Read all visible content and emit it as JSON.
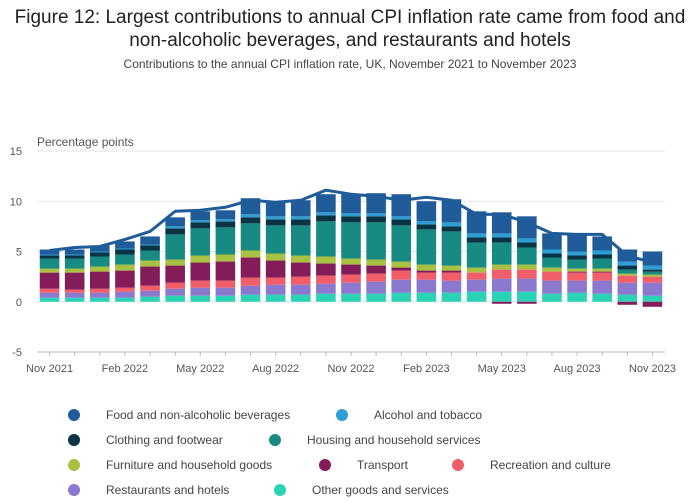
{
  "title": "Figure 12: Largest contributions to annual CPI inflation rate came from food and non-alcoholic beverages, and restaurants and hotels",
  "subtitle": "Contributions to the annual CPI inflation rate, UK, November 2021 to November 2023",
  "chart_data": {
    "type": "bar",
    "stacked": true,
    "ylabel": "Percentage points",
    "ylim": [
      -5,
      15
    ],
    "yticks": [
      -5,
      0,
      5,
      10,
      15
    ],
    "grid": true,
    "legend_position": "bottom",
    "categories": [
      "Nov 2021",
      "Dec 2021",
      "Jan 2022",
      "Feb 2022",
      "Mar 2022",
      "Apr 2022",
      "May 2022",
      "Jun 2022",
      "Jul 2022",
      "Aug 2022",
      "Sep 2022",
      "Oct 2022",
      "Nov 2022",
      "Dec 2022",
      "Jan 2023",
      "Feb 2023",
      "Mar 2023",
      "Apr 2023",
      "May 2023",
      "Jun 2023",
      "Jul 2023",
      "Aug 2023",
      "Sep 2023",
      "Oct 2023",
      "Nov 2023"
    ],
    "xtick_labels": [
      "Nov 2021",
      "Feb 2022",
      "May 2022",
      "Aug 2022",
      "Nov 2022",
      "Feb 2023",
      "May 2023",
      "Aug 2023",
      "Nov 2023"
    ],
    "xtick_indices": [
      0,
      3,
      6,
      9,
      12,
      15,
      18,
      21,
      24
    ],
    "series": [
      {
        "name": "Other goods and services",
        "color": "#2bd3b5",
        "values": [
          0.4,
          0.4,
          0.4,
          0.4,
          0.5,
          0.6,
          0.6,
          0.6,
          0.7,
          0.7,
          0.7,
          0.8,
          0.8,
          0.8,
          0.9,
          0.9,
          0.9,
          1.0,
          1.0,
          1.0,
          0.8,
          0.9,
          0.8,
          0.7,
          0.6
        ]
      },
      {
        "name": "Restaurants and hotels",
        "color": "#8b78cf",
        "values": [
          0.5,
          0.5,
          0.5,
          0.6,
          0.6,
          0.7,
          0.8,
          0.8,
          0.9,
          1.0,
          1.0,
          1.0,
          1.1,
          1.2,
          1.3,
          1.3,
          1.2,
          1.2,
          1.3,
          1.3,
          1.3,
          1.2,
          1.3,
          1.2,
          1.3
        ]
      },
      {
        "name": "Recreation and culture",
        "color": "#f05f69",
        "values": [
          0.4,
          0.3,
          0.4,
          0.4,
          0.5,
          0.6,
          0.7,
          0.7,
          0.8,
          0.7,
          0.8,
          0.8,
          0.8,
          0.8,
          0.9,
          0.7,
          0.8,
          0.7,
          0.9,
          0.9,
          0.9,
          0.8,
          0.8,
          0.7,
          0.6
        ]
      },
      {
        "name": "Transport",
        "color": "#841c5a",
        "values": [
          1.6,
          1.7,
          1.7,
          1.7,
          1.9,
          1.7,
          1.8,
          1.9,
          2.0,
          1.7,
          1.4,
          1.2,
          1.0,
          0.8,
          0.3,
          0.2,
          0.2,
          0.0,
          -0.2,
          -0.2,
          0.0,
          0.1,
          0.1,
          -0.3,
          -0.5
        ]
      },
      {
        "name": "Furniture and household goods",
        "color": "#a8c143",
        "values": [
          0.4,
          0.4,
          0.5,
          0.6,
          0.6,
          0.6,
          0.7,
          0.7,
          0.7,
          0.7,
          0.7,
          0.7,
          0.6,
          0.6,
          0.6,
          0.6,
          0.5,
          0.5,
          0.5,
          0.5,
          0.4,
          0.3,
          0.3,
          0.2,
          0.2
        ]
      },
      {
        "name": "Housing and household services",
        "color": "#178a82",
        "values": [
          1.0,
          1.0,
          1.0,
          1.0,
          1.0,
          2.5,
          2.7,
          2.7,
          2.7,
          2.8,
          3.0,
          3.5,
          3.6,
          3.7,
          3.6,
          3.5,
          3.4,
          2.5,
          2.2,
          1.7,
          1.0,
          0.9,
          1.0,
          0.4,
          0.3
        ]
      },
      {
        "name": "Clothing and footwear",
        "color": "#0a3343",
        "values": [
          0.3,
          0.3,
          0.4,
          0.5,
          0.5,
          0.6,
          0.6,
          0.6,
          0.6,
          0.6,
          0.6,
          0.6,
          0.6,
          0.6,
          0.6,
          0.5,
          0.5,
          0.5,
          0.5,
          0.5,
          0.4,
          0.4,
          0.4,
          0.4,
          0.2
        ]
      },
      {
        "name": "Alcohol and tobacco",
        "color": "#2e9ed6",
        "values": [
          0.1,
          0.1,
          0.1,
          0.1,
          0.1,
          0.2,
          0.2,
          0.2,
          0.3,
          0.3,
          0.3,
          0.3,
          0.3,
          0.3,
          0.3,
          0.3,
          0.4,
          0.4,
          0.4,
          0.4,
          0.4,
          0.4,
          0.4,
          0.4,
          0.4
        ]
      },
      {
        "name": "Food and non-alcoholic beverages",
        "color": "#1f5c99",
        "values": [
          0.5,
          0.5,
          0.6,
          0.7,
          0.8,
          0.9,
          0.9,
          0.9,
          1.6,
          1.5,
          1.6,
          1.8,
          1.9,
          2.0,
          2.2,
          2.0,
          2.3,
          2.2,
          2.1,
          2.2,
          1.6,
          1.6,
          1.4,
          1.2,
          1.4
        ]
      }
    ],
    "line": {
      "name": "CPI annual rate",
      "color": "#1f5c99",
      "values": [
        5.1,
        5.4,
        5.5,
        6.2,
        7.0,
        9.0,
        9.1,
        9.4,
        10.1,
        9.9,
        10.1,
        11.1,
        10.7,
        10.5,
        10.1,
        10.4,
        10.1,
        8.7,
        8.7,
        7.9,
        6.8,
        6.7,
        6.7,
        4.6,
        3.9
      ]
    }
  },
  "legend": [
    {
      "label": "Food and non-alcoholic beverages",
      "color": "#1f5c99"
    },
    {
      "label": "Alcohol and tobacco",
      "color": "#2e9ed6"
    },
    {
      "label": "Clothing and footwear",
      "color": "#0a3343"
    },
    {
      "label": "Housing and household services",
      "color": "#178a82"
    },
    {
      "label": "Furniture and household goods",
      "color": "#a8c143"
    },
    {
      "label": "Transport",
      "color": "#841c5a"
    },
    {
      "label": "Recreation and culture",
      "color": "#f05f69"
    },
    {
      "label": "Restaurants and hotels",
      "color": "#8b78cf"
    },
    {
      "label": "Other goods and services",
      "color": "#2bd3b5"
    }
  ]
}
